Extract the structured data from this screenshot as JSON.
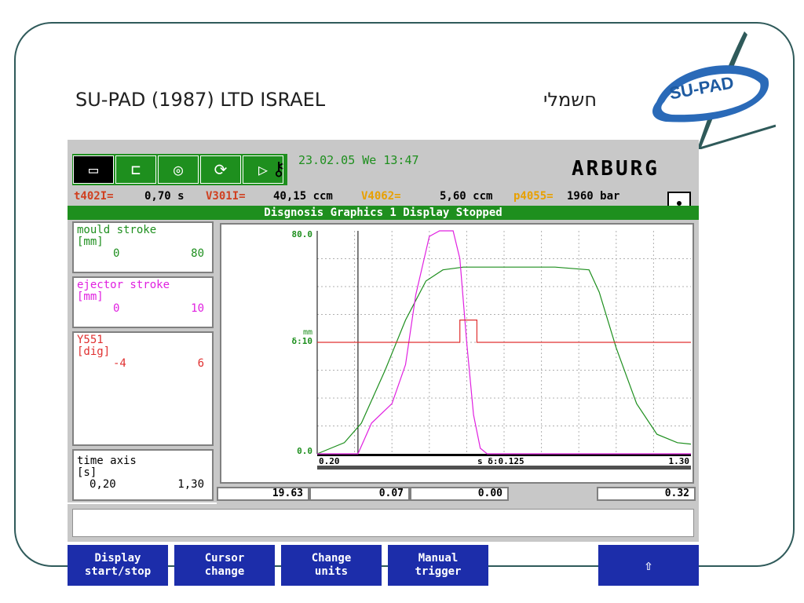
{
  "header": {
    "company": "SU-PAD (1987) LTD ISRAEL",
    "hebrew": "חשמלי",
    "logo_text": "SU-PAD"
  },
  "screen": {
    "datetime": "23.02.05 We  13:47",
    "brand": "ARBURG",
    "params": [
      {
        "key": "t402I=",
        "value": "0,70 s"
      },
      {
        "key": "V301I=",
        "value": "40,15 ccm"
      },
      {
        "key": "V4062=",
        "value": "5,60 ccm"
      },
      {
        "key": "p4055=",
        "value": "1960 bar"
      }
    ],
    "status": "Disgnosis Graphics 1 Display Stopped",
    "toolbar_icons": [
      "mould-icon",
      "injection-unit-icon",
      "heating-icon",
      "cycle-icon",
      "input-icon",
      "key-icon"
    ],
    "channels": [
      {
        "name": "mould stroke",
        "unit": "[mm]",
        "min": "0",
        "max": "80",
        "color": "#1e8f1e"
      },
      {
        "name": "ejector stroke",
        "unit": "[mm]",
        "min": "0",
        "max": "10",
        "color": "#e020e0"
      },
      {
        "name": "Y551",
        "unit": "[dig]",
        "min": "-4",
        "max": "6",
        "color": "#e03030"
      }
    ],
    "time_axis": {
      "name": "time axis",
      "unit": "[s]",
      "min": "0,20",
      "max": "1,30"
    },
    "readouts": [
      {
        "value": "19.63",
        "color": "#1e8f1e"
      },
      {
        "value": "0.07",
        "color": "#e020e0"
      },
      {
        "value": "0.00",
        "color": "#e03030"
      },
      {
        "value": "0.32",
        "color": "#000000"
      }
    ]
  },
  "chart_data": {
    "type": "line",
    "y_top_label": "80.0",
    "y_bottom_label": "0.0",
    "y_mid_unit": "mm",
    "y_mid_label": "δ:10",
    "x_start_label": "0.20",
    "x_mid_label": "s  δ:0.125",
    "x_end_label": "1.30",
    "xlim": [
      0.2,
      1.3
    ],
    "ylim": [
      0,
      80
    ],
    "grid": true,
    "cursor_x": 0.32,
    "series": [
      {
        "name": "mould stroke",
        "color": "#1e8f1e",
        "x": [
          0.2,
          0.28,
          0.33,
          0.4,
          0.46,
          0.52,
          0.57,
          0.63,
          0.7,
          0.8,
          0.9,
          1.0,
          1.03,
          1.08,
          1.14,
          1.2,
          1.26,
          1.3
        ],
        "y": [
          0.0,
          4.0,
          11.0,
          30.0,
          48.0,
          62.0,
          66.0,
          67.0,
          67.0,
          67.0,
          67.0,
          66.0,
          58.0,
          38.0,
          18.0,
          7.0,
          4.0,
          3.5
        ]
      },
      {
        "name": "ejector stroke",
        "color": "#e020e0",
        "x": [
          0.2,
          0.32,
          0.36,
          0.42,
          0.46,
          0.49,
          0.53,
          0.56,
          0.6,
          0.62,
          0.64,
          0.66,
          0.68,
          0.7,
          1.3
        ],
        "y": [
          0.0,
          0.0,
          11.0,
          18.0,
          32.0,
          57.0,
          78.0,
          80.0,
          80.0,
          70.0,
          40.0,
          14.0,
          2.0,
          0.0,
          0.0
        ]
      },
      {
        "name": "Y551",
        "color": "#e03030",
        "x": [
          0.2,
          0.62,
          0.62,
          0.67,
          0.67,
          1.3
        ],
        "y": [
          1.0,
          1.0,
          2.0,
          2.0,
          1.0,
          1.0
        ]
      }
    ]
  },
  "softkeys": [
    {
      "line1": "Display",
      "line2": "start/stop"
    },
    {
      "line1": "Cursor",
      "line2": "change"
    },
    {
      "line1": "Change",
      "line2": "units"
    },
    {
      "line1": "Manual",
      "line2": "trigger"
    },
    {
      "line1": "⇧",
      "line2": ""
    }
  ]
}
